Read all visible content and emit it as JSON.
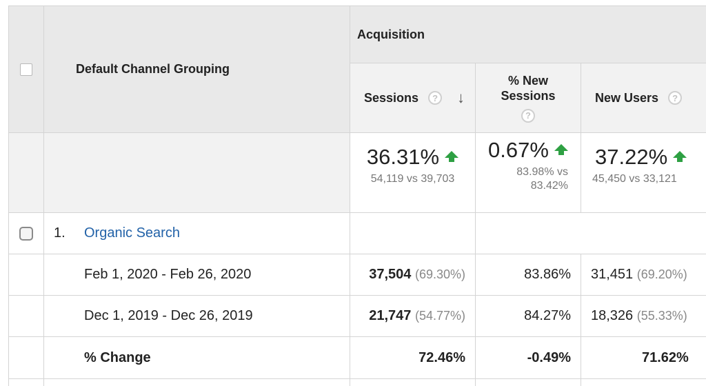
{
  "header": {
    "grouping_label": "Default Channel Grouping",
    "section_label": "Acquisition",
    "columns": [
      {
        "label": "Sessions",
        "help": "?",
        "sort_icon": "arrow-down-icon"
      },
      {
        "label": "% New Sessions",
        "help": "?"
      },
      {
        "label": "New Users",
        "help": "?"
      }
    ]
  },
  "summary": {
    "sessions": {
      "change": "36.31%",
      "detail": "54,119 vs 39,703"
    },
    "new_sessions": {
      "change": "0.67%",
      "detail": "83.98% vs 83.42%"
    },
    "new_users": {
      "change": "37.22%",
      "detail": "45,450 vs 33,121"
    }
  },
  "rows": [
    {
      "index": "1.",
      "channel": "Organic Search",
      "periods": [
        {
          "label": "Feb 1, 2020 - Feb 26, 2020",
          "sessions": "37,504",
          "sessions_pct": "(69.30%)",
          "new_sessions": "83.86%",
          "new_users": "31,451",
          "new_users_pct": "(69.20%)"
        },
        {
          "label": "Dec 1, 2019 - Dec 26, 2019",
          "sessions": "21,747",
          "sessions_pct": "(54.77%)",
          "new_sessions": "84.27%",
          "new_users": "18,326",
          "new_users_pct": "(55.33%)"
        }
      ],
      "change": {
        "label": "% Change",
        "sessions": "72.46%",
        "new_sessions": "-0.49%",
        "new_users": "71.62%"
      }
    }
  ],
  "colors": {
    "link": "#2262a8",
    "up_arrow": "#2ea043",
    "header_bg": "#e9e9e9"
  }
}
